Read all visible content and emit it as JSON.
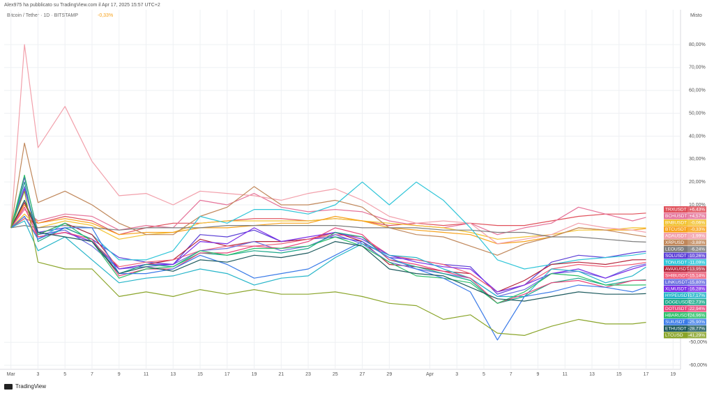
{
  "header": {
    "published": "Alex975 ha pubblicato su TradingView.com il Apr 17, 2025 15:57 UTC+2",
    "watermark": "TradingView"
  },
  "chart_data": {
    "type": "line",
    "title": "Bitcoin / Tether · 1D · BITSTAMP",
    "symbol_change": "-0,33%",
    "scale_mode": "Misto",
    "x": [
      1,
      2,
      3,
      5,
      7,
      9,
      11,
      13,
      15,
      17,
      19,
      21,
      23,
      25,
      27,
      29,
      31,
      33,
      35,
      37,
      39,
      41,
      43,
      45,
      47,
      48
    ],
    "xlim": [
      0.5,
      50.5
    ],
    "xticks": [
      {
        "value": 1,
        "label": "Mar"
      },
      3,
      5,
      7,
      9,
      11,
      13,
      15,
      17,
      19,
      21,
      23,
      25,
      27,
      29,
      {
        "value": 32,
        "label": "Apr"
      },
      {
        "value": 34,
        "label": "3"
      },
      {
        "value": 36,
        "label": "5"
      },
      {
        "value": 38,
        "label": "7"
      },
      {
        "value": 40,
        "label": "9"
      },
      {
        "value": 42,
        "label": "11"
      },
      {
        "value": 44,
        "label": "13"
      },
      {
        "value": 46,
        "label": "15"
      },
      {
        "value": 48,
        "label": "17"
      },
      {
        "value": 50,
        "label": "19"
      }
    ],
    "ylim": [
      -61.8,
      95.2
    ],
    "yticks": [
      {
        "value": 80,
        "label": "80,00%"
      },
      {
        "value": 70,
        "label": "70,00%"
      },
      {
        "value": 60,
        "label": "60,00%"
      },
      {
        "value": 50,
        "label": "50,00%"
      },
      {
        "value": 40,
        "label": "40,00%"
      },
      {
        "value": 30,
        "label": "30,00%"
      },
      {
        "value": 20,
        "label": "20,00%"
      },
      {
        "value": 10,
        "label": "10,00%"
      },
      {
        "value": -50,
        "label": "-50,00%"
      },
      {
        "value": -60,
        "label": "-60,00%"
      }
    ],
    "grid": true,
    "series": [
      {
        "name": "TRXUSDT",
        "color": "#e0505a",
        "end_label": "+6,43%",
        "values": [
          0,
          4,
          2,
          5,
          3,
          -3,
          0,
          2,
          2,
          3,
          4,
          4,
          3,
          4,
          3,
          1,
          2,
          1,
          2,
          1,
          1,
          3,
          5,
          6,
          6,
          6.43
        ]
      },
      {
        "name": "BCHUSDT",
        "color": "#e57399",
        "end_label": "+4,57%",
        "values": [
          0,
          8,
          3,
          6,
          5,
          -1,
          1,
          0,
          12,
          10,
          15,
          9,
          7,
          8,
          7,
          3,
          1,
          0,
          2,
          -3,
          0,
          2,
          9,
          6,
          3,
          4.57
        ]
      },
      {
        "name": "BNBUSDT",
        "color": "#f2c230",
        "end_label": "-0,06%",
        "values": [
          0,
          6,
          0,
          3,
          1,
          -5,
          -3,
          -2,
          2,
          3,
          3,
          3,
          3,
          4,
          3,
          2,
          1,
          0,
          -2,
          -5,
          -4,
          -3,
          -1,
          -1,
          0,
          -0.06
        ]
      },
      {
        "name": "BTCUSDT",
        "color": "#f7a21b",
        "end_label": "-0,33%",
        "values": [
          0,
          10,
          2,
          4,
          2,
          -3,
          -2,
          -2,
          0,
          0,
          1,
          2,
          2,
          5,
          3,
          0,
          -1,
          -2,
          -3,
          -7,
          -6,
          -4,
          0,
          -1,
          -1,
          -0.33
        ]
      },
      {
        "name": "ADAUSDT",
        "color": "#f2a0ab",
        "end_label": "-1,99%",
        "values": [
          0,
          80,
          35,
          53,
          29,
          14,
          15,
          10,
          16,
          15,
          14,
          12,
          15,
          17,
          12,
          5,
          2,
          3,
          2,
          -7,
          -5,
          -3,
          2,
          0,
          -1,
          -1.99
        ]
      },
      {
        "name": "XRPUSD",
        "color": "#c0875a",
        "end_label": "-3,88%",
        "values": [
          0,
          37,
          11,
          16,
          10,
          2,
          -3,
          -3,
          5,
          9,
          18,
          10,
          10,
          12,
          9,
          0,
          -3,
          -4,
          -8,
          -12,
          -7,
          -4,
          0,
          -1,
          -3,
          -3.88
        ]
      },
      {
        "name": "LEOUSD",
        "color": "#7d7d7d",
        "end_label": "-6,24%",
        "values": [
          0,
          1,
          0,
          1,
          0,
          -1,
          0,
          0,
          0,
          1,
          1,
          1,
          1,
          1,
          0,
          0,
          0,
          -1,
          -1,
          -2,
          -2,
          -4,
          -4,
          -5,
          -6,
          -6.24
        ]
      },
      {
        "name": "SOLUSDT",
        "color": "#5b3fd6",
        "end_label": "-10,26%",
        "values": [
          0,
          22,
          -2,
          0,
          -5,
          -13,
          -15,
          -16,
          -3,
          -4,
          -1,
          -6,
          -5,
          -4,
          -6,
          -13,
          -14,
          -16,
          -17,
          -29,
          -25,
          -15,
          -12,
          -13,
          -11,
          -10.26
        ]
      },
      {
        "name": "TONUSDT",
        "color": "#2fc5d8",
        "end_label": "-11,09%",
        "values": [
          0,
          5,
          -5,
          2,
          -3,
          -14,
          -14,
          -10,
          5,
          2,
          8,
          8,
          6,
          10,
          20,
          10,
          20,
          12,
          0,
          -14,
          -18,
          -16,
          -14,
          -13,
          -12,
          -11.09
        ]
      },
      {
        "name": "AVAXUSDT",
        "color": "#b7243a",
        "end_label": "-13,95%",
        "values": [
          0,
          11,
          -3,
          2,
          -3,
          -18,
          -16,
          -14,
          -5,
          -8,
          -6,
          -6,
          -5,
          -2,
          -6,
          -16,
          -17,
          -19,
          -20,
          -28,
          -23,
          -16,
          -15,
          -16,
          -14,
          -13.95
        ]
      },
      {
        "name": "SHIBUSDT",
        "color": "#f0607a",
        "end_label": "-15,14%",
        "values": [
          0,
          5,
          -4,
          -2,
          -6,
          -17,
          -15,
          -14,
          -10,
          -8,
          -8,
          -7,
          -5,
          -3,
          -4,
          -12,
          -14,
          -16,
          -20,
          -28,
          -25,
          -18,
          -16,
          -17,
          -16,
          -15.14
        ]
      },
      {
        "name": "LINKUSDT",
        "color": "#6a6ee0",
        "end_label": "-15,80%",
        "values": [
          0,
          18,
          -3,
          -1,
          -8,
          -18,
          -17,
          -16,
          -10,
          -9,
          -6,
          -10,
          -8,
          -3,
          -7,
          -15,
          -18,
          -20,
          -22,
          -30,
          -27,
          -20,
          -19,
          -22,
          -17,
          -15.8
        ]
      },
      {
        "name": "XLMUSDT",
        "color": "#7b2fe8",
        "end_label": "-16,28%",
        "values": [
          0,
          17,
          -4,
          -2,
          -6,
          -18,
          -16,
          -16,
          -6,
          -7,
          0,
          -6,
          -4,
          -2,
          -5,
          -12,
          -15,
          -17,
          -18,
          -28,
          -25,
          -20,
          -18,
          -22,
          -18,
          -16.28
        ]
      },
      {
        "name": "HYPEUSDT",
        "color": "#26b5c9",
        "end_label": "-17,17%",
        "values": [
          0,
          3,
          -10,
          -4,
          -14,
          -24,
          -22,
          -21,
          -18,
          -20,
          -25,
          -22,
          -21,
          -13,
          -7,
          -12,
          -13,
          -18,
          -22,
          -30,
          -30,
          -18,
          -19,
          -24,
          -21,
          -17.17
        ]
      },
      {
        "name": "DOGEUSDT",
        "color": "#1aa88a",
        "end_label": "-22,73%",
        "values": [
          0,
          20,
          -6,
          0,
          -5,
          -20,
          -16,
          -17,
          -11,
          -12,
          -10,
          -11,
          -9,
          -2,
          -4,
          -14,
          -17,
          -20,
          -23,
          -33,
          -30,
          -24,
          -22,
          -25,
          -23,
          -22.73
        ]
      },
      {
        "name": "DOTUSDT",
        "color": "#e8437a",
        "end_label": "-22,94%",
        "values": [
          0,
          9,
          -4,
          -2,
          -5,
          -21,
          -18,
          -18,
          -11,
          -11,
          -8,
          -9,
          -6,
          0,
          -3,
          -14,
          -16,
          -19,
          -22,
          -33,
          -29,
          -24,
          -23,
          -26,
          -23,
          -22.94
        ]
      },
      {
        "name": "HBARUSDT",
        "color": "#2dbf6a",
        "end_label": "-24,96%",
        "values": [
          0,
          23,
          -3,
          2,
          -6,
          -22,
          -18,
          -17,
          -10,
          -12,
          -9,
          -9,
          -8,
          -4,
          -8,
          -15,
          -21,
          -22,
          -24,
          -33,
          -28,
          -20,
          -21,
          -25,
          -25,
          -24.96
        ]
      },
      {
        "name": "SUIUSDT",
        "color": "#3b7be8",
        "end_label": "-25,90%",
        "values": [
          0,
          5,
          -5,
          0,
          0,
          -20,
          -20,
          -18,
          -12,
          -16,
          -22,
          -20,
          -18,
          -12,
          -6,
          -13,
          -18,
          -22,
          -28,
          -49,
          -30,
          -28,
          -25,
          -26,
          -28,
          -25.9
        ]
      },
      {
        "name": "ETHUSDT",
        "color": "#1d5a5e",
        "end_label": "-28,77%",
        "values": [
          0,
          12,
          -2,
          -4,
          -6,
          -20,
          -17,
          -19,
          -14,
          -15,
          -12,
          -13,
          -11,
          -6,
          -8,
          -18,
          -20,
          -21,
          -26,
          -31,
          -32,
          -30,
          -28,
          -29,
          -29,
          -28.77
        ]
      },
      {
        "name": "LTCUSD",
        "color": "#8aa52a",
        "end_label": "-41,29%",
        "values": [
          0,
          16,
          -15,
          -18,
          -18,
          -30,
          -28,
          -30,
          -27,
          -29,
          -27,
          -29,
          -29,
          -28,
          -30,
          -33,
          -34,
          -40,
          -38,
          -46,
          -47,
          -43,
          -40,
          -42,
          -42,
          -41.29
        ]
      }
    ]
  }
}
